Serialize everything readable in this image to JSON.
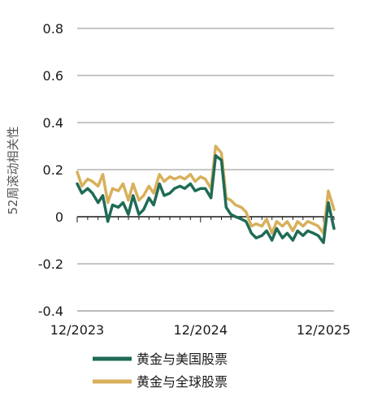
{
  "chart_data": {
    "type": "line",
    "ylabel": "52周滚动相关性",
    "ylim": [
      -0.4,
      0.8
    ],
    "yticks": [
      0.8,
      0.6,
      0.4,
      0.2,
      0,
      -0.2,
      -0.4
    ],
    "ytick_labels": [
      "0.8",
      "0.6",
      "0.4",
      "0.2",
      "0",
      "-0.2",
      "-0.4"
    ],
    "xlim": [
      "2023-12",
      "2026-01"
    ],
    "xticks": [
      "2023-12",
      "2024-12",
      "2025-12"
    ],
    "xtick_labels": [
      "12/2023",
      "12/2024",
      "12/2025"
    ],
    "grid": true,
    "legend_position": "bottom-left",
    "series": [
      {
        "name": "黄金与美国股票",
        "color": "#1f6b56",
        "x": [
          "2023-12-01",
          "2023-12-15",
          "2024-01-01",
          "2024-01-15",
          "2024-02-01",
          "2024-02-15",
          "2024-03-01",
          "2024-03-15",
          "2024-04-01",
          "2024-04-15",
          "2024-05-01",
          "2024-05-15",
          "2024-06-01",
          "2024-06-15",
          "2024-07-01",
          "2024-07-15",
          "2024-08-01",
          "2024-08-15",
          "2024-09-01",
          "2024-09-15",
          "2024-10-01",
          "2024-10-15",
          "2024-11-01",
          "2024-11-15",
          "2024-12-01",
          "2024-12-15",
          "2025-01-01",
          "2025-01-15",
          "2025-02-01",
          "2025-02-15",
          "2025-03-01",
          "2025-03-15",
          "2025-04-01",
          "2025-04-15",
          "2025-05-01",
          "2025-05-15",
          "2025-06-01",
          "2025-06-15",
          "2025-07-01",
          "2025-07-15",
          "2025-08-01",
          "2025-08-15",
          "2025-09-01",
          "2025-09-15",
          "2025-10-01",
          "2025-10-15",
          "2025-11-01",
          "2025-11-15",
          "2025-12-01",
          "2025-12-15",
          "2026-01-01"
        ],
        "values": [
          0.14,
          0.1,
          0.12,
          0.1,
          0.06,
          0.09,
          -0.02,
          0.05,
          0.04,
          0.06,
          0.01,
          0.09,
          0.01,
          0.03,
          0.08,
          0.05,
          0.14,
          0.09,
          0.1,
          0.12,
          0.13,
          0.12,
          0.14,
          0.11,
          0.12,
          0.12,
          0.08,
          0.26,
          0.24,
          0.04,
          0.01,
          0.0,
          -0.01,
          -0.02,
          -0.07,
          -0.09,
          -0.08,
          -0.06,
          -0.1,
          -0.05,
          -0.09,
          -0.07,
          -0.1,
          -0.06,
          -0.08,
          -0.06,
          -0.07,
          -0.08,
          -0.11,
          0.06,
          -0.05
        ]
      },
      {
        "name": "黄金与全球股票",
        "color": "#d8b05c",
        "x": [
          "2023-12-01",
          "2023-12-15",
          "2024-01-01",
          "2024-01-15",
          "2024-02-01",
          "2024-02-15",
          "2024-03-01",
          "2024-03-15",
          "2024-04-01",
          "2024-04-15",
          "2024-05-01",
          "2024-05-15",
          "2024-06-01",
          "2024-06-15",
          "2024-07-01",
          "2024-07-15",
          "2024-08-01",
          "2024-08-15",
          "2024-09-01",
          "2024-09-15",
          "2024-10-01",
          "2024-10-15",
          "2024-11-01",
          "2024-11-15",
          "2024-12-01",
          "2024-12-15",
          "2025-01-01",
          "2025-01-15",
          "2025-02-01",
          "2025-02-15",
          "2025-03-01",
          "2025-03-15",
          "2025-04-01",
          "2025-04-15",
          "2025-05-01",
          "2025-05-15",
          "2025-06-01",
          "2025-06-15",
          "2025-07-01",
          "2025-07-15",
          "2025-08-01",
          "2025-08-15",
          "2025-09-01",
          "2025-09-15",
          "2025-10-01",
          "2025-10-15",
          "2025-11-01",
          "2025-11-15",
          "2025-12-01",
          "2025-12-15",
          "2026-01-01"
        ],
        "values": [
          0.19,
          0.13,
          0.16,
          0.15,
          0.13,
          0.18,
          0.06,
          0.12,
          0.11,
          0.14,
          0.07,
          0.14,
          0.07,
          0.09,
          0.13,
          0.1,
          0.18,
          0.15,
          0.17,
          0.16,
          0.17,
          0.16,
          0.18,
          0.15,
          0.17,
          0.16,
          0.12,
          0.3,
          0.27,
          0.08,
          0.07,
          0.05,
          0.04,
          0.02,
          -0.04,
          -0.03,
          -0.04,
          -0.01,
          -0.07,
          -0.02,
          -0.04,
          -0.02,
          -0.06,
          -0.02,
          -0.04,
          -0.02,
          -0.03,
          -0.04,
          -0.07,
          0.11,
          0.03
        ]
      }
    ]
  }
}
